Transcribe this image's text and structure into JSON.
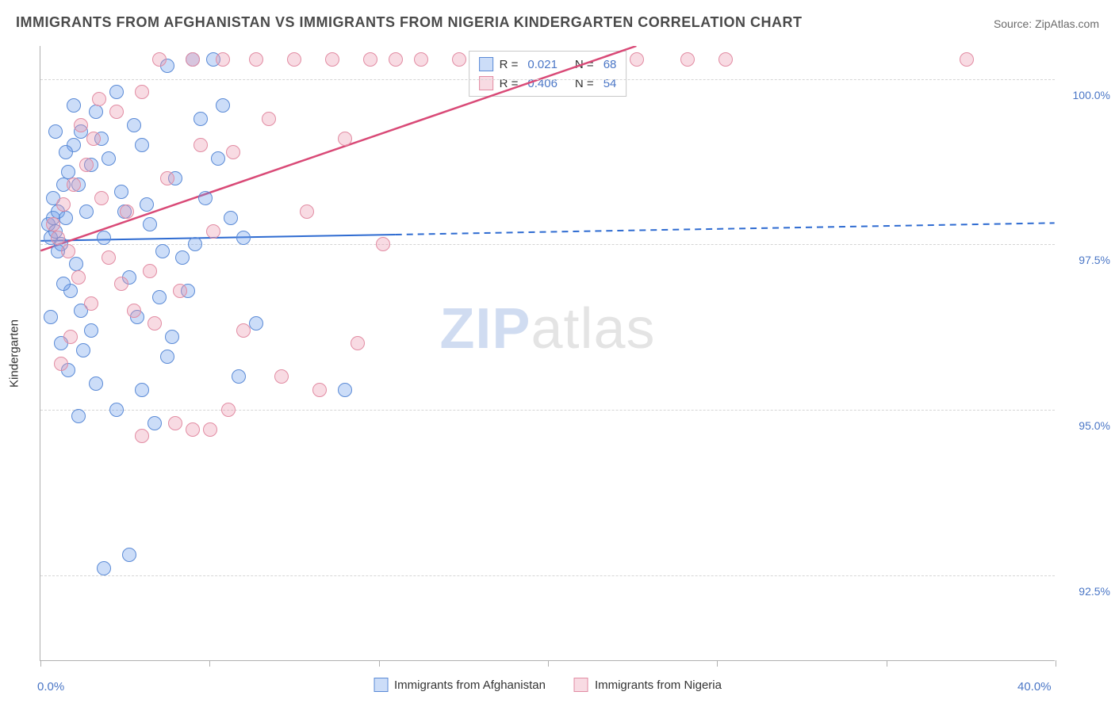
{
  "title": "IMMIGRANTS FROM AFGHANISTAN VS IMMIGRANTS FROM NIGERIA KINDERGARTEN CORRELATION CHART",
  "source": "Source: ZipAtlas.com",
  "y_axis_title": "Kindergarten",
  "watermark_a": "ZIP",
  "watermark_b": "atlas",
  "chart": {
    "type": "scatter",
    "xlim": [
      0,
      40
    ],
    "ylim": [
      91.2,
      100.5
    ],
    "x_ticks": [
      0,
      40
    ],
    "x_tick_labels": [
      "0.0%",
      "40.0%"
    ],
    "x_minor_ticks": [
      6.67,
      13.33,
      20,
      26.67,
      33.33
    ],
    "y_ticks": [
      92.5,
      95.0,
      97.5,
      100.0
    ],
    "y_tick_labels": [
      "92.5%",
      "95.0%",
      "97.5%",
      "100.0%"
    ],
    "background_color": "#ffffff",
    "grid_color": "#d5d5d5",
    "axis_color": "#b0b0b0",
    "label_color": "#4a76c6",
    "marker_radius": 9,
    "series": [
      {
        "key": "afghanistan",
        "label": "Immigrants from Afghanistan",
        "color_fill": "rgba(109,158,235,0.35)",
        "color_stroke": "#5a8ad6",
        "R": "0.021",
        "N": "68",
        "trend": {
          "x1": 0,
          "y1": 97.55,
          "x2": 40,
          "y2": 97.82,
          "solid_until_x": 14,
          "color": "#2e6bd1",
          "width": 2
        },
        "points": [
          [
            0.3,
            97.8
          ],
          [
            0.4,
            97.6
          ],
          [
            0.5,
            97.9
          ],
          [
            0.6,
            97.7
          ],
          [
            0.7,
            98.0
          ],
          [
            0.8,
            97.5
          ],
          [
            0.5,
            98.2
          ],
          [
            0.7,
            97.4
          ],
          [
            0.9,
            98.4
          ],
          [
            1.1,
            98.6
          ],
          [
            1.0,
            97.9
          ],
          [
            1.3,
            99.0
          ],
          [
            1.5,
            98.4
          ],
          [
            1.6,
            99.2
          ],
          [
            1.8,
            98.0
          ],
          [
            2.0,
            98.7
          ],
          [
            1.4,
            97.2
          ],
          [
            1.2,
            96.8
          ],
          [
            1.6,
            96.5
          ],
          [
            0.9,
            96.9
          ],
          [
            2.2,
            99.5
          ],
          [
            2.4,
            99.1
          ],
          [
            2.7,
            98.8
          ],
          [
            2.5,
            97.6
          ],
          [
            3.0,
            99.8
          ],
          [
            3.2,
            98.3
          ],
          [
            3.5,
            97.0
          ],
          [
            3.8,
            96.4
          ],
          [
            4.0,
            99.0
          ],
          [
            4.3,
            97.8
          ],
          [
            4.7,
            96.7
          ],
          [
            5.0,
            100.2
          ],
          [
            5.3,
            98.5
          ],
          [
            5.6,
            97.3
          ],
          [
            6.0,
            100.3
          ],
          [
            6.3,
            99.4
          ],
          [
            5.0,
            95.8
          ],
          [
            4.0,
            95.3
          ],
          [
            3.0,
            95.0
          ],
          [
            2.2,
            95.4
          ],
          [
            6.8,
            100.3
          ],
          [
            7.2,
            99.6
          ],
          [
            7.5,
            97.9
          ],
          [
            7.8,
            95.5
          ],
          [
            2.5,
            92.6
          ],
          [
            3.5,
            92.8
          ],
          [
            2.0,
            96.2
          ],
          [
            1.7,
            95.9
          ],
          [
            1.0,
            98.9
          ],
          [
            0.6,
            99.2
          ],
          [
            4.5,
            94.8
          ],
          [
            5.2,
            96.1
          ],
          [
            5.8,
            96.8
          ],
          [
            6.1,
            97.5
          ],
          [
            6.5,
            98.2
          ],
          [
            7.0,
            98.8
          ],
          [
            8.0,
            97.6
          ],
          [
            8.5,
            96.3
          ],
          [
            12.0,
            95.3
          ],
          [
            1.3,
            99.6
          ],
          [
            0.4,
            96.4
          ],
          [
            0.8,
            96.0
          ],
          [
            1.1,
            95.6
          ],
          [
            1.5,
            94.9
          ],
          [
            3.3,
            98.0
          ],
          [
            3.7,
            99.3
          ],
          [
            4.2,
            98.1
          ],
          [
            4.8,
            97.4
          ]
        ]
      },
      {
        "key": "nigeria",
        "label": "Immigrants from Nigeria",
        "color_fill": "rgba(234,153,174,0.35)",
        "color_stroke": "#e28ca3",
        "R": "0.406",
        "N": "54",
        "trend": {
          "x1": 0,
          "y1": 97.4,
          "x2": 23.5,
          "y2": 100.5,
          "color": "#d94a77",
          "width": 2.5
        },
        "points": [
          [
            0.5,
            97.8
          ],
          [
            0.7,
            97.6
          ],
          [
            0.9,
            98.1
          ],
          [
            1.1,
            97.4
          ],
          [
            1.3,
            98.4
          ],
          [
            1.5,
            97.0
          ],
          [
            1.8,
            98.7
          ],
          [
            2.1,
            99.1
          ],
          [
            2.4,
            98.2
          ],
          [
            2.7,
            97.3
          ],
          [
            3.0,
            99.5
          ],
          [
            3.4,
            98.0
          ],
          [
            3.7,
            96.5
          ],
          [
            4.0,
            99.8
          ],
          [
            4.3,
            97.1
          ],
          [
            4.7,
            100.3
          ],
          [
            5.0,
            98.5
          ],
          [
            5.5,
            96.8
          ],
          [
            6.0,
            100.3
          ],
          [
            6.3,
            99.0
          ],
          [
            6.8,
            97.7
          ],
          [
            7.2,
            100.3
          ],
          [
            7.6,
            98.9
          ],
          [
            8.0,
            96.2
          ],
          [
            8.5,
            100.3
          ],
          [
            9.0,
            99.4
          ],
          [
            9.5,
            95.5
          ],
          [
            10.0,
            100.3
          ],
          [
            10.5,
            98.0
          ],
          [
            11.0,
            95.3
          ],
          [
            11.5,
            100.3
          ],
          [
            12.0,
            99.1
          ],
          [
            12.5,
            96.0
          ],
          [
            13.0,
            100.3
          ],
          [
            13.5,
            97.5
          ],
          [
            14.0,
            100.3
          ],
          [
            5.3,
            94.8
          ],
          [
            6.0,
            94.7
          ],
          [
            6.7,
            94.7
          ],
          [
            7.4,
            95.0
          ],
          [
            4.0,
            94.6
          ],
          [
            4.5,
            96.3
          ],
          [
            3.2,
            96.9
          ],
          [
            2.0,
            96.6
          ],
          [
            1.2,
            96.1
          ],
          [
            0.8,
            95.7
          ],
          [
            1.6,
            99.3
          ],
          [
            2.3,
            99.7
          ],
          [
            15.0,
            100.3
          ],
          [
            16.5,
            100.3
          ],
          [
            23.5,
            100.3
          ],
          [
            25.5,
            100.3
          ],
          [
            27.0,
            100.3
          ],
          [
            36.5,
            100.3
          ]
        ]
      }
    ]
  },
  "bottom_legend": [
    {
      "swatch": "a",
      "label_key": "chart.series.0.label"
    },
    {
      "swatch": "b",
      "label_key": "chart.series.1.label"
    }
  ]
}
